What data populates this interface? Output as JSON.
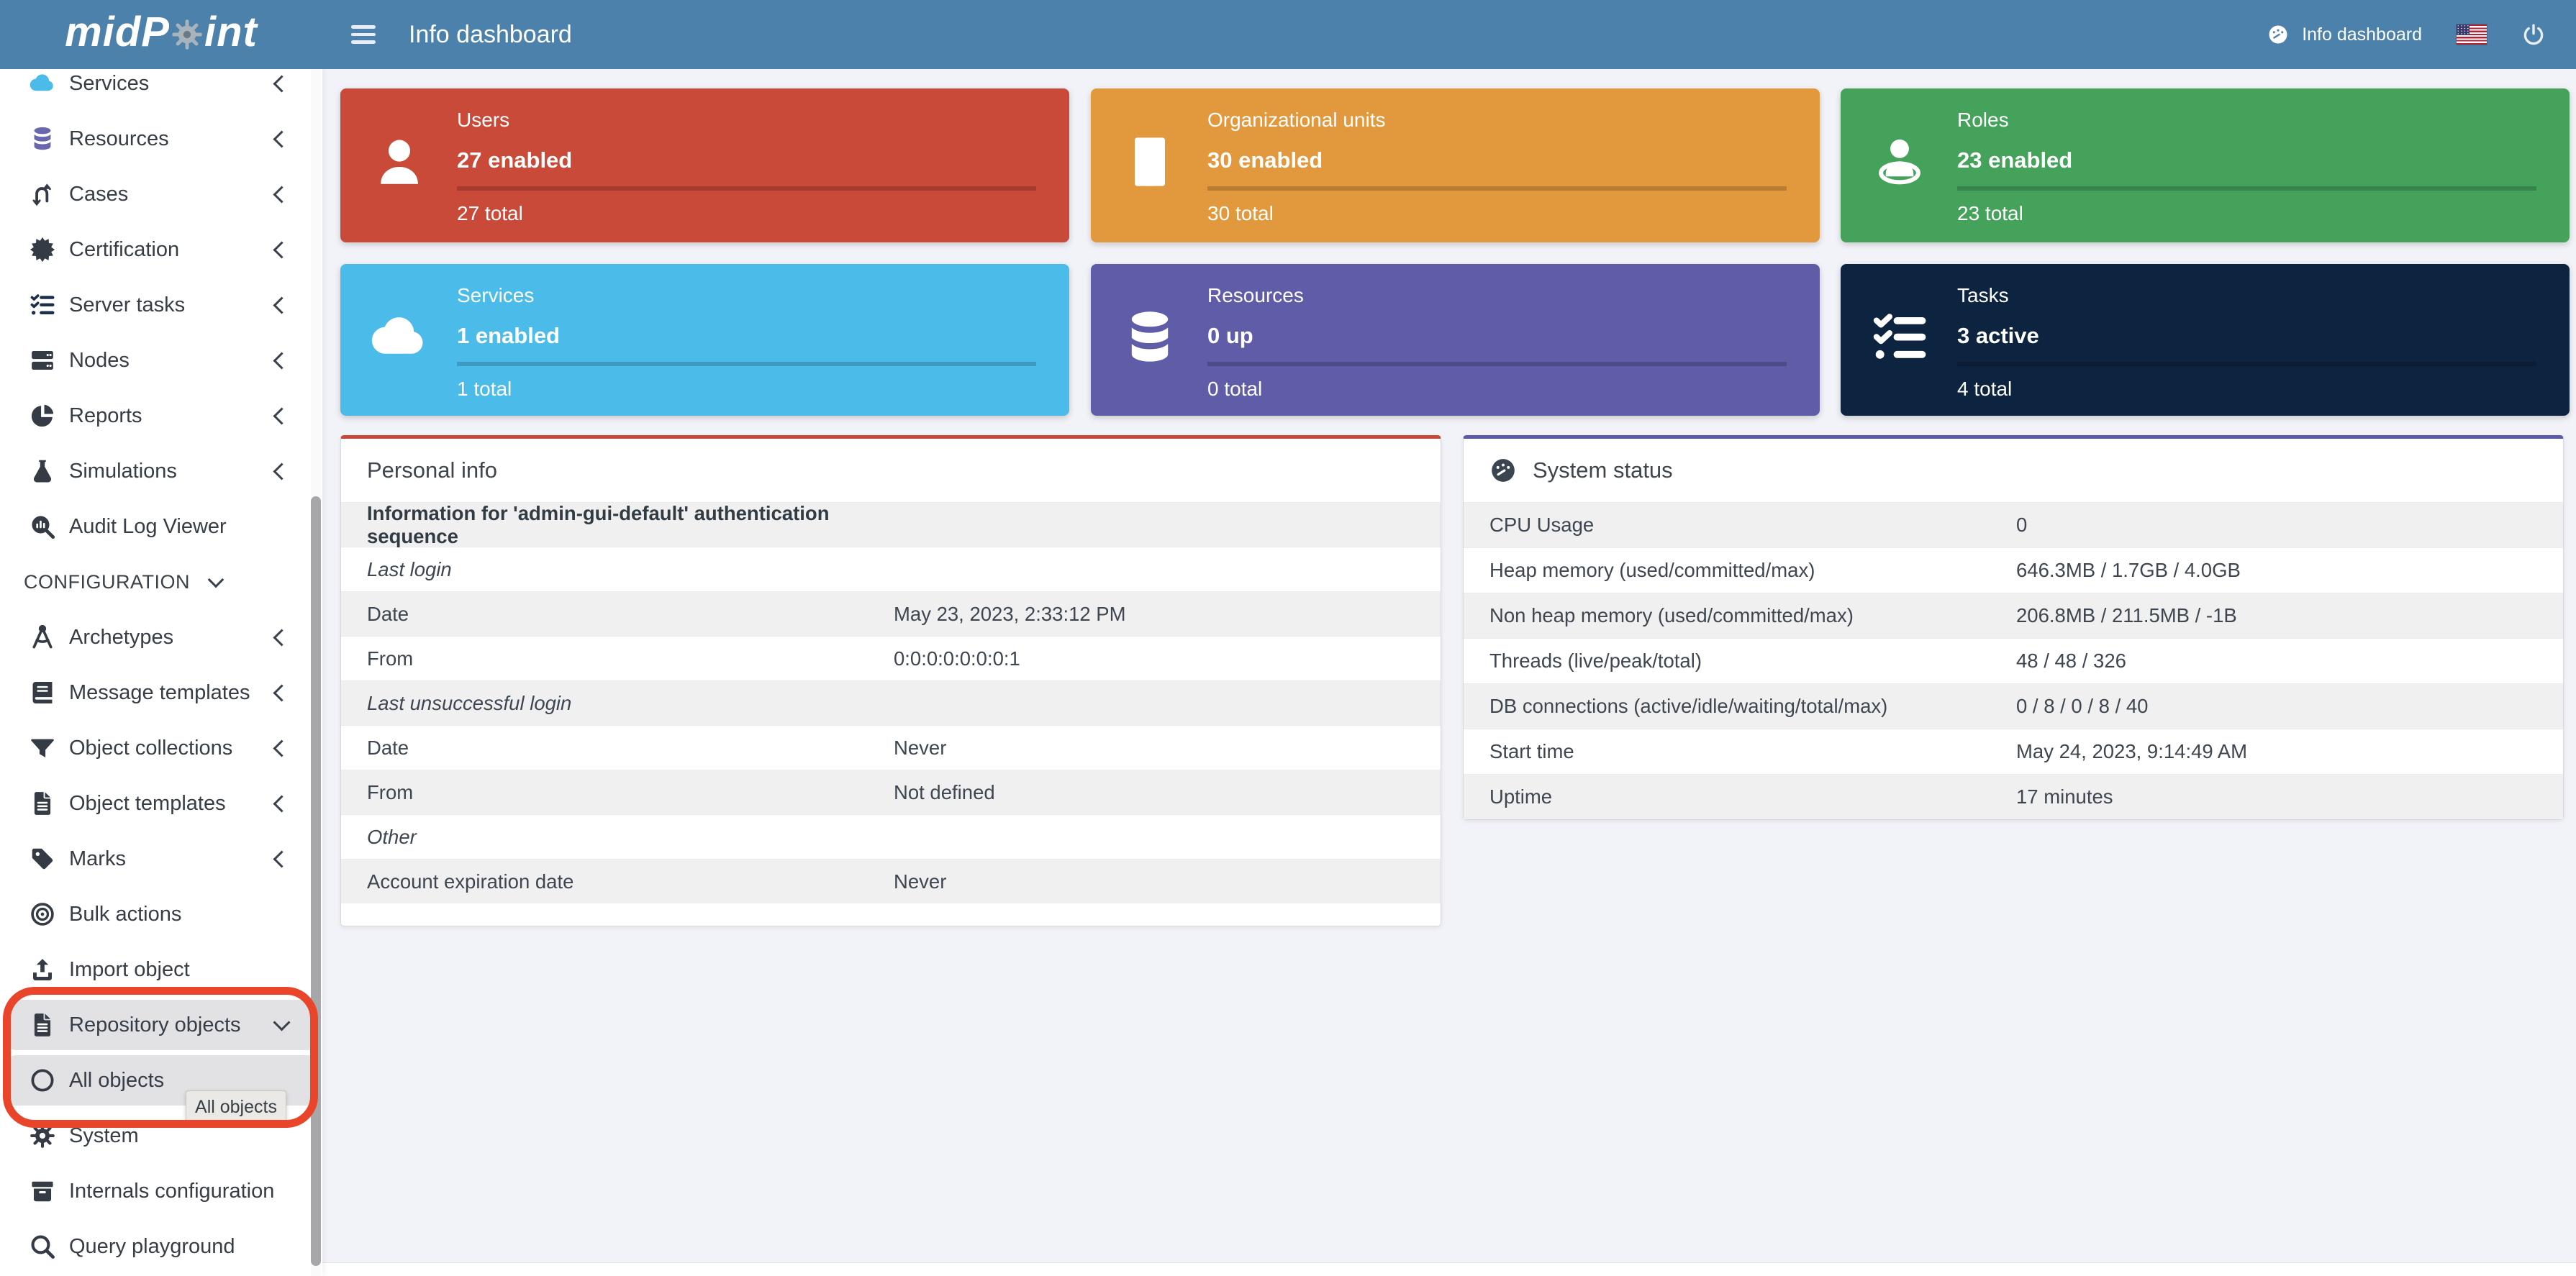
{
  "colors": {
    "navbar": "#4c81ac",
    "main_bg": "#f2f3f8",
    "annotation": "#e8452a",
    "sidebar_highlight": "#e2e2e4"
  },
  "navbar": {
    "logo_pre": "midP",
    "logo_post": "int",
    "title": "Info dashboard",
    "right_label": "Info dashboard"
  },
  "sidebar": {
    "tooltip": "All objects",
    "items": [
      {
        "label": "Services",
        "icon": "cloud-icon",
        "icon_color": "#4bbcea",
        "chevron": "left"
      },
      {
        "label": "Resources",
        "icon": "database-icon",
        "icon_color": "#6967ad",
        "chevron": "left"
      },
      {
        "label": "Cases",
        "icon": "turn-arrows-icon",
        "chevron": "left"
      },
      {
        "label": "Certification",
        "icon": "seal-icon",
        "chevron": "left"
      },
      {
        "label": "Server tasks",
        "icon": "list-check-icon",
        "icon_color": "#1b2e4a",
        "chevron": "left"
      },
      {
        "label": "Nodes",
        "icon": "server-icon",
        "chevron": "left"
      },
      {
        "label": "Reports",
        "icon": "pie-chart-icon",
        "chevron": "left"
      },
      {
        "label": "Simulations",
        "icon": "flask-icon",
        "chevron": "left"
      },
      {
        "label": "Audit Log Viewer",
        "icon": "audit-search-icon"
      },
      {
        "label": "CONFIGURATION",
        "type": "header",
        "chevron": "down"
      },
      {
        "label": "Archetypes",
        "icon": "compass-icon",
        "chevron": "left"
      },
      {
        "label": "Message templates",
        "icon": "book-icon",
        "chevron": "left"
      },
      {
        "label": "Object collections",
        "icon": "filter-icon",
        "chevron": "left"
      },
      {
        "label": "Object templates",
        "icon": "file-icon",
        "chevron": "left"
      },
      {
        "label": "Marks",
        "icon": "tag-icon",
        "chevron": "left"
      },
      {
        "label": "Bulk actions",
        "icon": "bullseye-icon"
      },
      {
        "label": "Import object",
        "icon": "upload-icon"
      },
      {
        "label": "Repository objects",
        "icon": "file-icon",
        "chevron": "down",
        "highlight": true
      },
      {
        "label": "All objects",
        "icon": "circle-icon",
        "highlight": true
      },
      {
        "label": "System",
        "icon": "gear-icon"
      },
      {
        "label": "Internals configuration",
        "icon": "archive-icon"
      },
      {
        "label": "Query playground",
        "icon": "search-icon"
      }
    ]
  },
  "infoboxes": [
    {
      "title": "Users",
      "headline": "27 enabled",
      "total": "27 total",
      "color": "#c94a38",
      "icon": "user-icon",
      "progress": 100
    },
    {
      "title": "Organizational units",
      "headline": "30 enabled",
      "total": "30 total",
      "color": "#e2993e",
      "icon": "building-icon",
      "progress": 100
    },
    {
      "title": "Roles",
      "headline": "23 enabled",
      "total": "23 total",
      "color": "#44a25b",
      "icon": "role-icon",
      "progress": 100
    },
    {
      "title": "Services",
      "headline": "1 enabled",
      "total": "1 total",
      "color": "#4bbcea",
      "icon": "cloud-icon",
      "progress": 100
    },
    {
      "title": "Resources",
      "headline": "0 up",
      "total": "0 total",
      "color": "#5f5da8",
      "icon": "database-icon",
      "progress": 0
    },
    {
      "title": "Tasks",
      "headline": "3 active",
      "total": "4 total",
      "color": "#0d2440",
      "icon": "list-check-icon",
      "progress": 75
    }
  ],
  "personal_info": {
    "title": "Personal info",
    "accent": "#c8493b",
    "rows": [
      {
        "label": "Information for 'admin-gui-default' authentication sequence",
        "value": "",
        "style": "bold"
      },
      {
        "label": "Last login",
        "value": "",
        "style": "italic"
      },
      {
        "label": "Date",
        "value": "May 23, 2023, 2:33:12 PM"
      },
      {
        "label": "From",
        "value": "0:0:0:0:0:0:0:1"
      },
      {
        "label": "Last unsuccessful login",
        "value": "",
        "style": "italic"
      },
      {
        "label": "Date",
        "value": "Never"
      },
      {
        "label": "From",
        "value": "Not defined"
      },
      {
        "label": "Other",
        "value": "",
        "style": "italic"
      },
      {
        "label": "Account expiration date",
        "value": "Never"
      }
    ]
  },
  "system_status": {
    "title": "System status",
    "accent": "#5c5aa7",
    "rows": [
      {
        "label": "CPU Usage",
        "value": "0"
      },
      {
        "label": "Heap memory (used/committed/max)",
        "value": "646.3MB / 1.7GB / 4.0GB"
      },
      {
        "label": "Non heap memory (used/committed/max)",
        "value": "206.8MB / 211.5MB / -1B"
      },
      {
        "label": "Threads (live/peak/total)",
        "value": "48 / 48 / 326"
      },
      {
        "label": "DB connections (active/idle/waiting/total/max)",
        "value": "0 / 8 / 0 / 8 / 40"
      },
      {
        "label": "Start time",
        "value": "May 24, 2023, 9:14:49 AM"
      },
      {
        "label": "Uptime",
        "value": "17 minutes"
      }
    ]
  }
}
